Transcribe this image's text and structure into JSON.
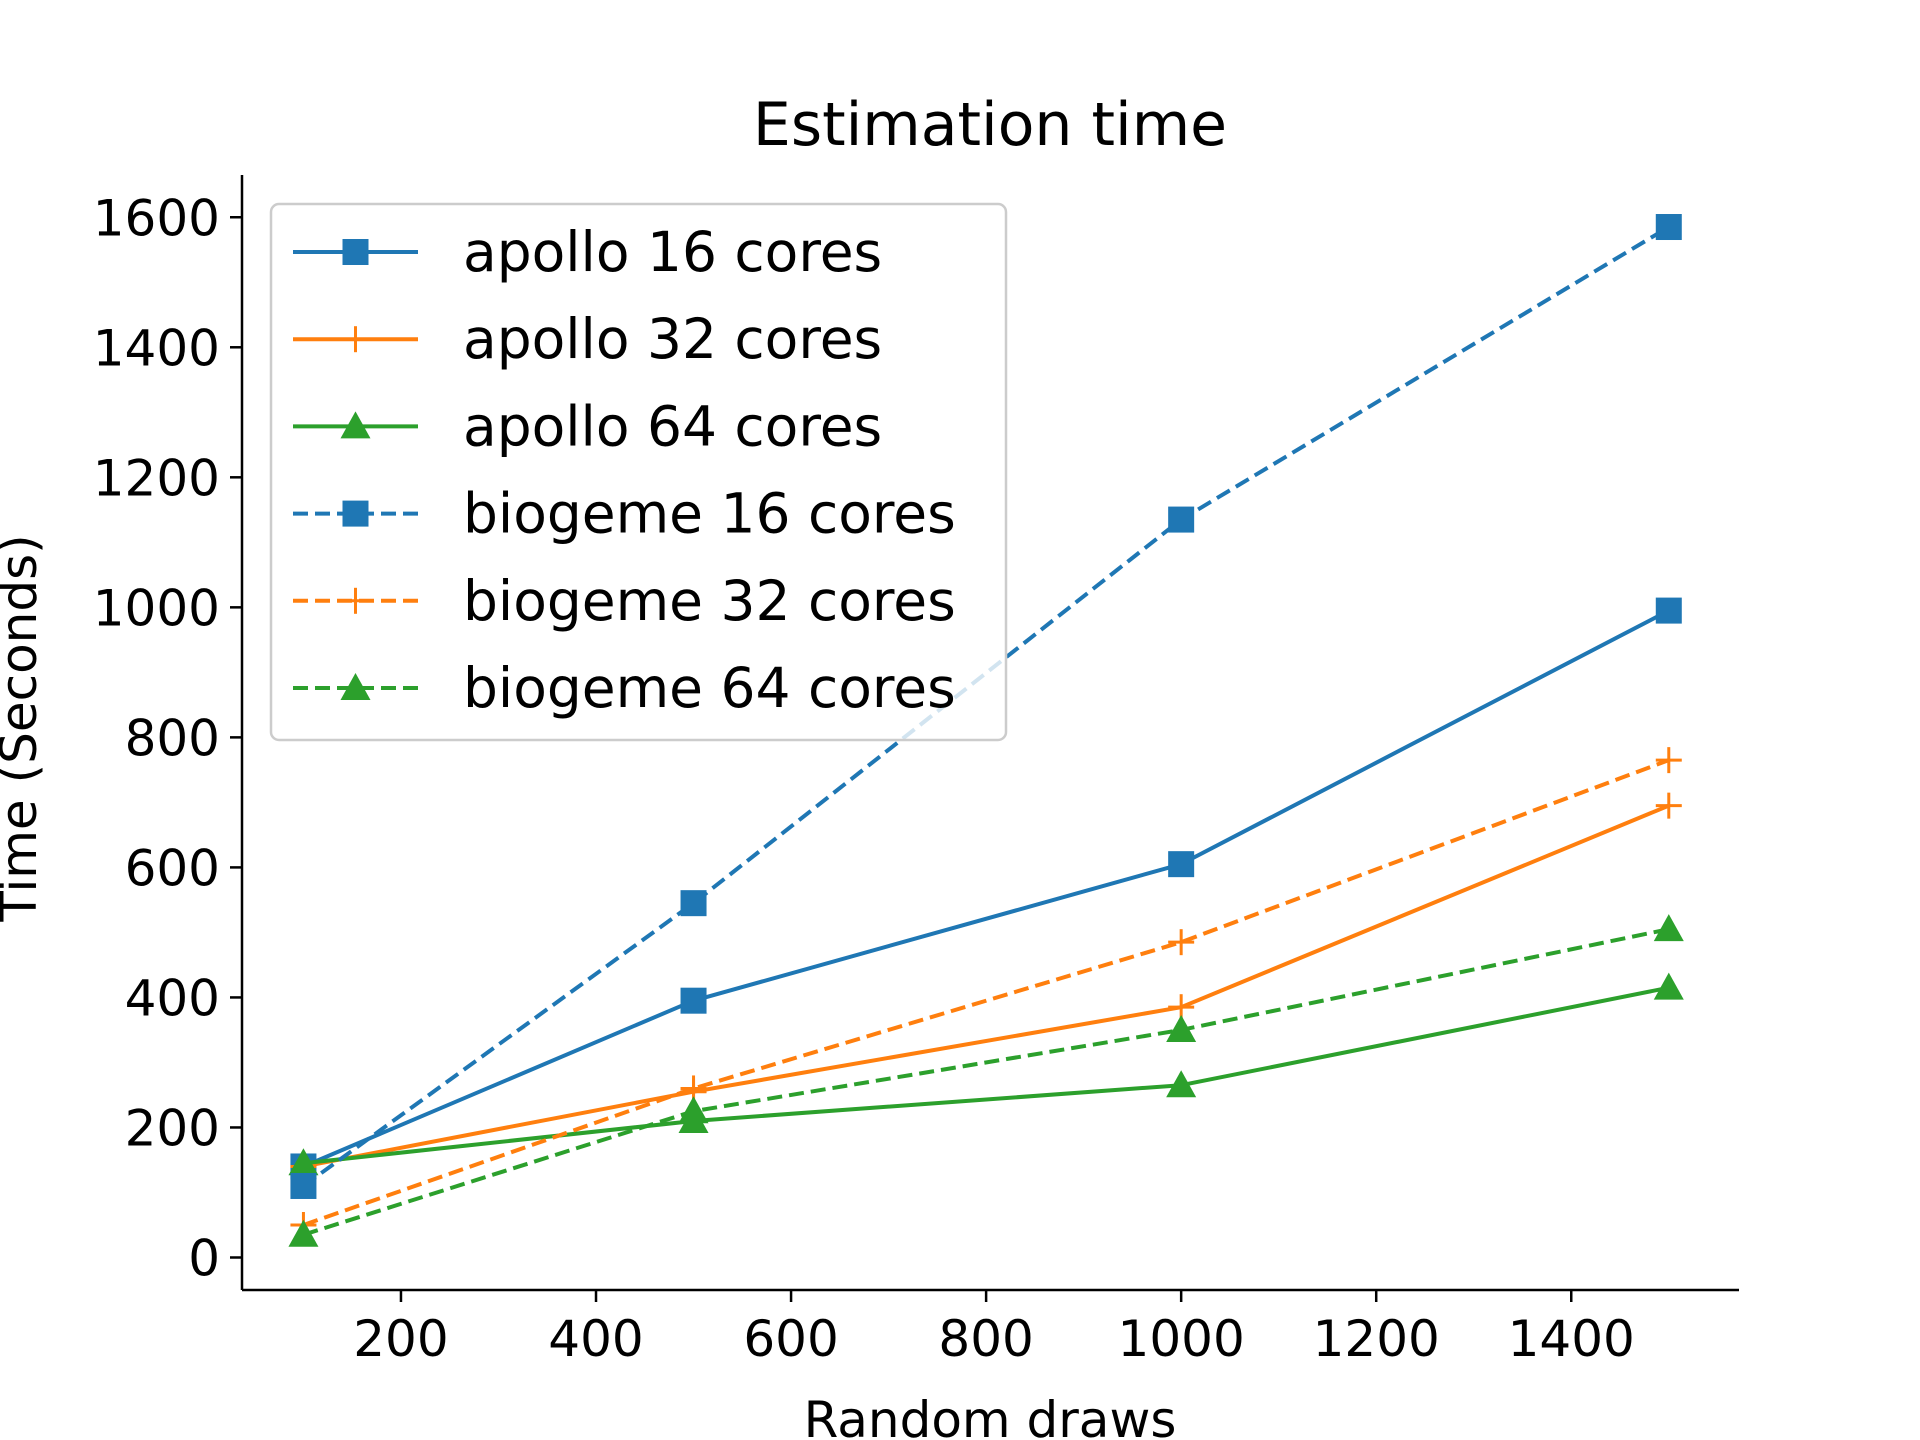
{
  "chart_data": {
    "type": "line",
    "title": "Estimation time",
    "xlabel": "Random draws",
    "ylabel": "Time (Seconds)",
    "xlim": [
      37,
      1572
    ],
    "ylim": [
      -50,
      1665
    ],
    "xticks": [
      200,
      400,
      600,
      800,
      1000,
      1200,
      1400
    ],
    "yticks": [
      0,
      200,
      400,
      600,
      800,
      1000,
      1200,
      1400,
      1600
    ],
    "grid": false,
    "legend_position": "upper-left",
    "series": [
      {
        "name": "apollo 16 cores",
        "color": "#1f77b4",
        "linestyle": "solid",
        "marker": "square",
        "x": [
          100,
          500,
          1000,
          1500
        ],
        "y": [
          140,
          395,
          605,
          995
        ]
      },
      {
        "name": "apollo 32 cores",
        "color": "#ff7f0e",
        "linestyle": "solid",
        "marker": "plus",
        "x": [
          100,
          500,
          1000,
          1500
        ],
        "y": [
          140,
          255,
          385,
          695
        ]
      },
      {
        "name": "apollo 64 cores",
        "color": "#2ca02c",
        "linestyle": "solid",
        "marker": "triangle",
        "x": [
          100,
          500,
          1000,
          1500
        ],
        "y": [
          145,
          210,
          265,
          415
        ]
      },
      {
        "name": "biogeme 16 cores",
        "color": "#1f77b4",
        "linestyle": "dashed",
        "marker": "square",
        "x": [
          100,
          500,
          1000,
          1500
        ],
        "y": [
          110,
          545,
          1135,
          1585
        ]
      },
      {
        "name": "biogeme 32 cores",
        "color": "#ff7f0e",
        "linestyle": "dashed",
        "marker": "plus",
        "x": [
          100,
          500,
          1000,
          1500
        ],
        "y": [
          50,
          260,
          485,
          765
        ]
      },
      {
        "name": "biogeme 64 cores",
        "color": "#2ca02c",
        "linestyle": "dashed",
        "marker": "triangle",
        "x": [
          100,
          500,
          1000,
          1500
        ],
        "y": [
          35,
          225,
          350,
          505
        ]
      }
    ]
  }
}
